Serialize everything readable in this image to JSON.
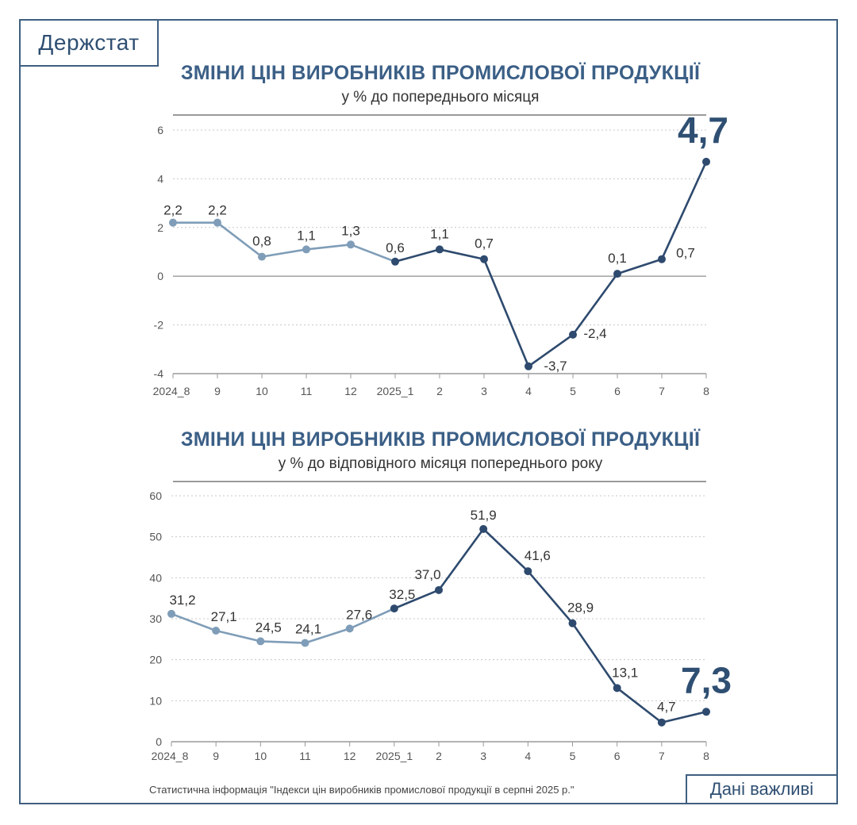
{
  "brand": "Держстат",
  "footer_note": "Статистична інформація \"Індекси цін виробників промислової продукції в серпні 2025 р.\"",
  "badge": "Дані важливі",
  "colors": {
    "light_series": "#7f9db8",
    "dark_series": "#2e4a6e",
    "grid": "#c8c8c8",
    "axis": "#9a9a9a"
  },
  "chart_data": [
    {
      "type": "line",
      "title": "ЗМІНИ ЦІН ВИРОБНИКІВ ПРОМИСЛОВОЇ ПРОДУКЦІЇ",
      "subtitle": "у % до попереднього місяця",
      "categories": [
        "2024_8",
        "9",
        "10",
        "11",
        "12",
        "2025_1",
        "2",
        "3",
        "4",
        "5",
        "6",
        "7",
        "8"
      ],
      "values": [
        2.2,
        2.2,
        0.8,
        1.1,
        1.3,
        0.6,
        1.1,
        0.7,
        -3.7,
        -2.4,
        0.1,
        0.7,
        4.7
      ],
      "labels": [
        "2,2",
        "2,2",
        "0,8",
        "1,1",
        "1,3",
        "0,6",
        "1,1",
        "0,7",
        "-3,7",
        "-2,4",
        "0,1",
        "0,7",
        "4,7"
      ],
      "yticks": [
        6,
        4,
        2,
        0,
        -2,
        -4
      ],
      "ytick_labels": [
        "6",
        "4",
        "2",
        "0",
        "-2",
        "-4"
      ],
      "ylim": [
        -4,
        6
      ],
      "light_until_index": 5,
      "highlight_index": 12
    },
    {
      "type": "line",
      "title": "ЗМІНИ ЦІН ВИРОБНИКІВ ПРОМИСЛОВОЇ ПРОДУКЦІЇ",
      "subtitle": "у % до відповідного місяця попереднього року",
      "categories": [
        "2024_8",
        "9",
        "10",
        "11",
        "12",
        "2025_1",
        "2",
        "3",
        "4",
        "5",
        "6",
        "7",
        "8"
      ],
      "values": [
        31.2,
        27.1,
        24.5,
        24.1,
        27.6,
        32.5,
        37.0,
        51.9,
        41.6,
        28.9,
        13.1,
        4.7,
        7.3
      ],
      "labels": [
        "31,2",
        "27,1",
        "24,5",
        "24,1",
        "27,6",
        "32,5",
        "37,0",
        "51,9",
        "41,6",
        "28,9",
        "13,1",
        "4,7",
        "7,3"
      ],
      "yticks": [
        60,
        50,
        40,
        30,
        20,
        10,
        0
      ],
      "ytick_labels": [
        "60",
        "50",
        "40",
        "30",
        "20",
        "10",
        "0"
      ],
      "ylim": [
        0,
        60
      ],
      "light_until_index": 5,
      "highlight_index": 12
    }
  ]
}
